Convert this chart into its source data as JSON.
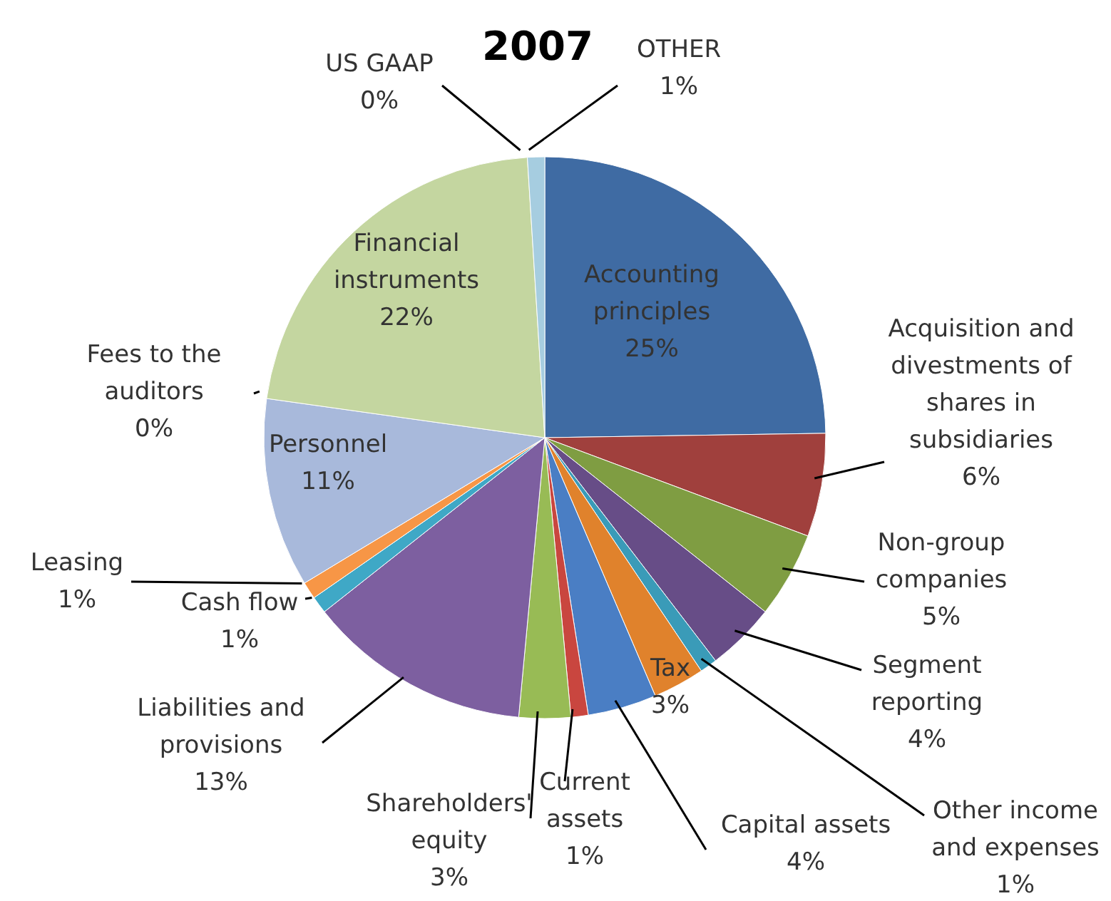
{
  "chart_data": {
    "type": "pie",
    "title": "2007",
    "categories": [
      "Accounting principles",
      "Acquisition and divestments of shares in subsidiaries",
      "Non-group companies",
      "Segment reporting",
      "Other income and expenses",
      "Tax",
      "Capital assets",
      "Current assets",
      "Shareholders' equity",
      "Liabilities and provisions",
      "Cash flow",
      "Leasing",
      "Personnel",
      "Fees to the auditors",
      "Financial instruments",
      "US GAAP",
      "OTHER"
    ],
    "values": [
      25,
      6,
      5,
      4,
      1,
      3,
      4,
      1,
      3,
      13,
      1,
      1,
      11,
      0,
      22,
      0,
      1
    ],
    "value_labels": [
      "25%",
      "6%",
      "5%",
      "4%",
      "1%",
      "3%",
      "4%",
      "1%",
      "3%",
      "13%",
      "1%",
      "1%",
      "11%",
      "0%",
      "22%",
      "0%",
      "1%"
    ],
    "colors": [
      "#3f6ba3",
      "#a0403d",
      "#7f9d42",
      "#674d87",
      "#3a9bb8",
      "#e0822c",
      "#4a7ec4",
      "#c9463f",
      "#98bb55",
      "#7d5fa0",
      "#3fa8c6",
      "#f79646",
      "#a8b9db",
      "#e0a0a0",
      "#c4d6a0",
      "#b3a2c7",
      "#a6cde0"
    ],
    "data_labels": true
  }
}
